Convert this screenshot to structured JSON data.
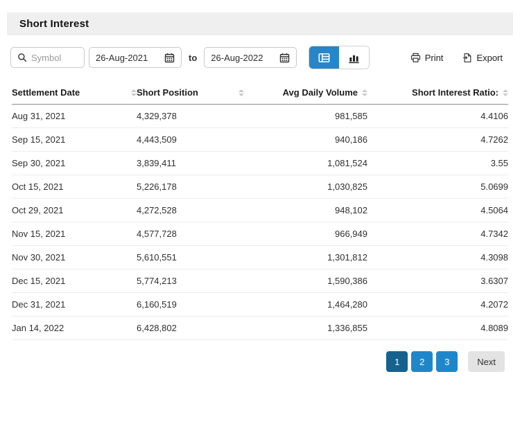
{
  "header": {
    "title": "Short Interest"
  },
  "toolbar": {
    "symbol_placeholder": "Symbol",
    "date_from": "26-Aug-2021",
    "range_separator": "to",
    "date_to": "26-Aug-2022",
    "print_label": "Print",
    "export_label": "Export",
    "icons": {
      "search": "search-icon",
      "calendar": "calendar-icon",
      "table_view": "table-view-icon",
      "chart_view": "bar-chart-icon",
      "print": "printer-icon",
      "export": "export-icon"
    },
    "active_view": "table"
  },
  "table": {
    "columns": [
      {
        "label": "Settlement Date",
        "align": "left",
        "sortable": true
      },
      {
        "label": "Short Position",
        "align": "left",
        "sortable": true
      },
      {
        "label": "Avg Daily Volume",
        "align": "right",
        "sortable": true
      },
      {
        "label": "Short Interest Ratio:",
        "align": "right",
        "sortable": true
      }
    ],
    "rows": [
      [
        "Aug 31, 2021",
        "4,329,378",
        "981,585",
        "4.4106"
      ],
      [
        "Sep 15, 2021",
        "4,443,509",
        "940,186",
        "4.7262"
      ],
      [
        "Sep 30, 2021",
        "3,839,411",
        "1,081,524",
        "3.55"
      ],
      [
        "Oct 15, 2021",
        "5,226,178",
        "1,030,825",
        "5.0699"
      ],
      [
        "Oct 29, 2021",
        "4,272,528",
        "948,102",
        "4.5064"
      ],
      [
        "Nov 15, 2021",
        "4,577,728",
        "966,949",
        "4.7342"
      ],
      [
        "Nov 30, 2021",
        "5,610,551",
        "1,301,812",
        "4.3098"
      ],
      [
        "Dec 15, 2021",
        "5,774,213",
        "1,590,386",
        "3.6307"
      ],
      [
        "Dec 31, 2021",
        "6,160,519",
        "1,464,280",
        "4.2072"
      ],
      [
        "Jan 14, 2022",
        "6,428,802",
        "1,336,855",
        "4.8089"
      ]
    ]
  },
  "pagination": {
    "pages": [
      "1",
      "2",
      "3"
    ],
    "active": "1",
    "next_label": "Next"
  },
  "colors": {
    "accent_blue": "#2786c7",
    "active_page_blue": "#17618f",
    "page_blue": "#1f87c9",
    "title_bar_bg": "#efefef",
    "next_btn_bg": "#e3e3e3"
  }
}
